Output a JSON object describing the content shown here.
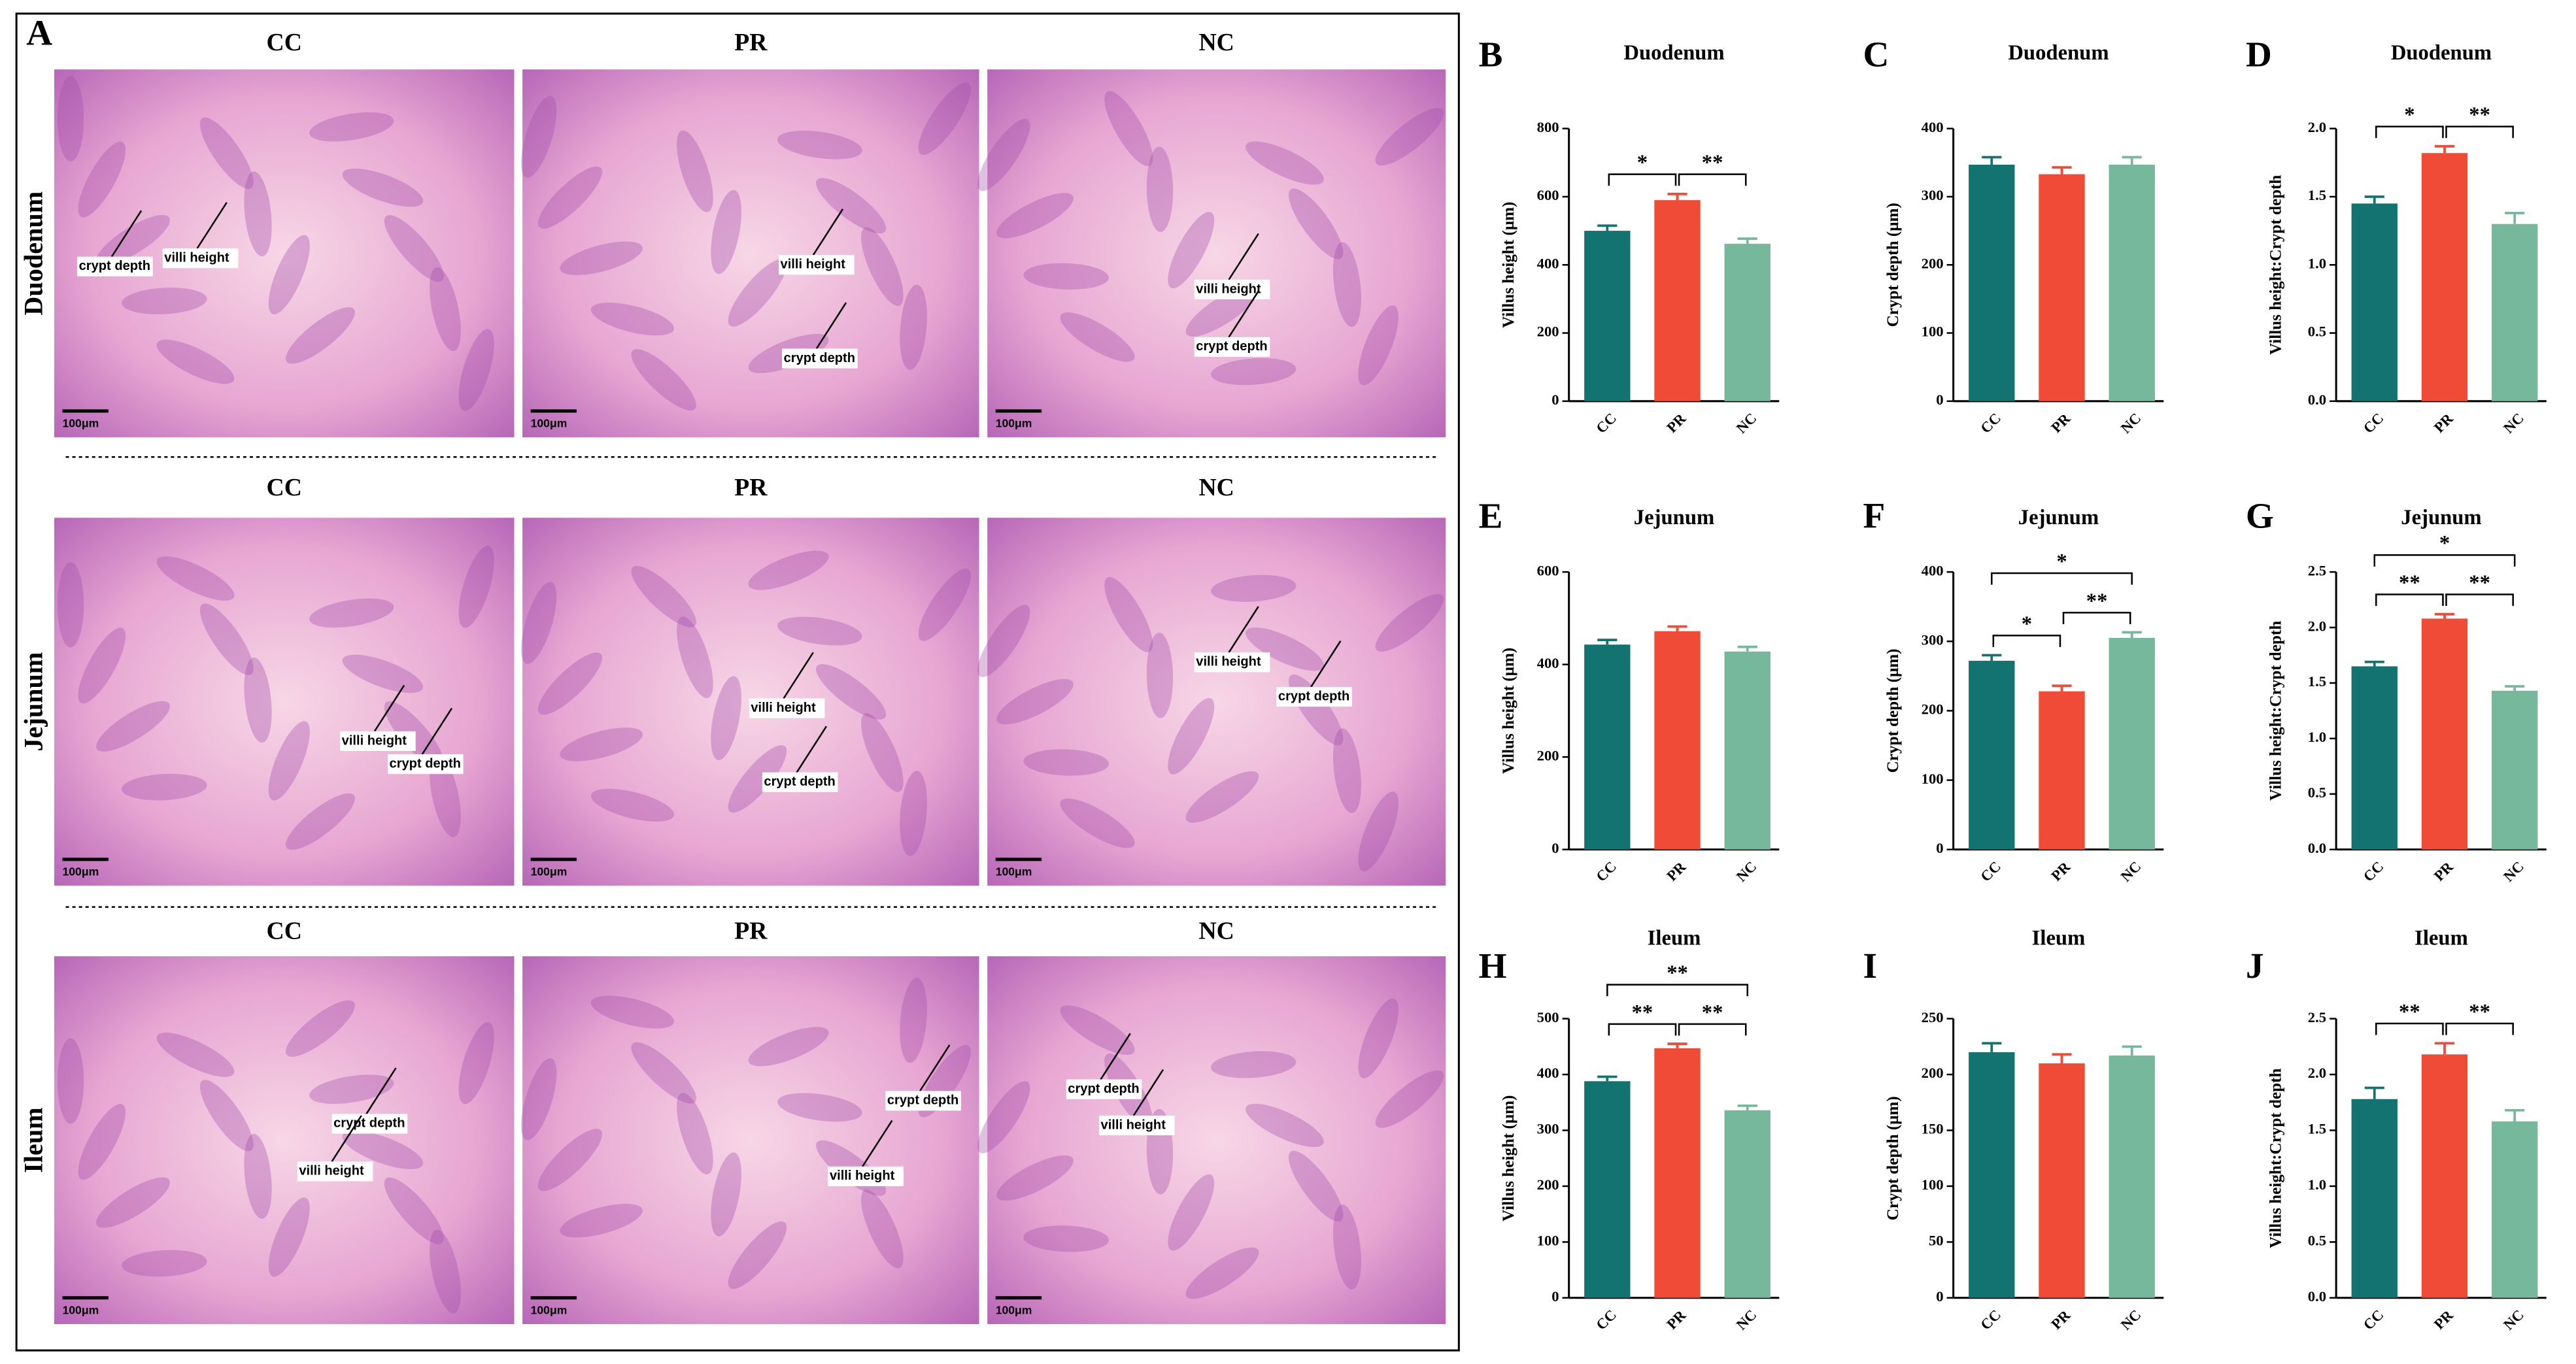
{
  "panel_a": {
    "label": "A",
    "rows": [
      {
        "name": "Duodenum",
        "groups": [
          "CC",
          "PR",
          "NC"
        ],
        "images": [
          {
            "annotations": [
              "crypt depth",
              "villi height"
            ],
            "scale_bar": "100μm"
          },
          {
            "annotations": [
              "villi height",
              "crypt depth"
            ],
            "scale_bar": "100μm"
          },
          {
            "annotations": [
              "villi height",
              "crypt depth"
            ],
            "scale_bar": "100μm"
          }
        ]
      },
      {
        "name": "Jejunum",
        "groups": [
          "CC",
          "PR",
          "NC"
        ],
        "images": [
          {
            "annotations": [
              "villi height",
              "crypt depth"
            ],
            "scale_bar": "100μm"
          },
          {
            "annotations": [
              "villi height",
              "crypt depth"
            ],
            "scale_bar": "100μm"
          },
          {
            "annotations": [
              "villi height",
              "crypt depth"
            ],
            "scale_bar": "100μm"
          }
        ]
      },
      {
        "name": "Ileum",
        "groups": [
          "CC",
          "PR",
          "NC"
        ],
        "images": [
          {
            "annotations": [
              "crypt depth",
              "villi height"
            ],
            "scale_bar": "100μm"
          },
          {
            "annotations": [
              "crypt depth",
              "villi height"
            ],
            "scale_bar": "100μm"
          },
          {
            "annotations": [
              "crypt depth",
              "villi height"
            ],
            "scale_bar": "100μm"
          }
        ]
      }
    ]
  },
  "chart_data": [
    {
      "type": "bar",
      "panel": "B",
      "title": "Duodenum",
      "ylabel": "Villus height (μm)",
      "categories": [
        "CC",
        "PR",
        "NC"
      ],
      "values": [
        500,
        590,
        462
      ],
      "errors": [
        15,
        18,
        15
      ],
      "colors": [
        "#137370",
        "#f04b36",
        "#76b89b"
      ],
      "ylim": [
        0,
        800
      ],
      "yticks": [
        0,
        200,
        400,
        600,
        800
      ],
      "significance": [
        {
          "from": "CC",
          "to": "PR",
          "label": "*"
        },
        {
          "from": "PR",
          "to": "NC",
          "label": "**"
        }
      ]
    },
    {
      "type": "bar",
      "panel": "C",
      "title": "Duodenum",
      "ylabel": "Crypt depth (μm)",
      "categories": [
        "CC",
        "PR",
        "NC"
      ],
      "values": [
        347,
        333,
        347
      ],
      "errors": [
        11,
        10,
        11
      ],
      "colors": [
        "#137370",
        "#f04b36",
        "#76b89b"
      ],
      "ylim": [
        0,
        400
      ],
      "yticks": [
        0,
        100,
        200,
        300,
        400
      ],
      "significance": []
    },
    {
      "type": "bar",
      "panel": "D",
      "title": "Duodenum",
      "ylabel": "Villus height:Crypt depth",
      "categories": [
        "CC",
        "PR",
        "NC"
      ],
      "values": [
        1.45,
        1.82,
        1.3
      ],
      "errors": [
        0.05,
        0.05,
        0.08
      ],
      "colors": [
        "#137370",
        "#f04b36",
        "#76b89b"
      ],
      "ylim": [
        0,
        2
      ],
      "yticks": [
        {
          "value": 0,
          "label": "0.0"
        },
        0.5,
        {
          "value": 1,
          "label": "1.0"
        },
        1.5,
        {
          "value": 2,
          "label": "2.0"
        }
      ],
      "significance": [
        {
          "from": "CC",
          "to": "PR",
          "label": "*"
        },
        {
          "from": "PR",
          "to": "NC",
          "label": "**"
        }
      ]
    },
    {
      "type": "bar",
      "panel": "E",
      "title": "Jejunum",
      "ylabel": "Villus height (μm)",
      "categories": [
        "CC",
        "PR",
        "NC"
      ],
      "values": [
        443,
        472,
        428
      ],
      "errors": [
        10,
        10,
        10
      ],
      "colors": [
        "#137370",
        "#f04b36",
        "#76b89b"
      ],
      "ylim": [
        0,
        600
      ],
      "yticks": [
        0,
        200,
        400,
        600
      ],
      "significance": []
    },
    {
      "type": "bar",
      "panel": "F",
      "title": "Jejunum",
      "ylabel": "Crypt depth (μm)",
      "categories": [
        "CC",
        "PR",
        "NC"
      ],
      "values": [
        272,
        228,
        305
      ],
      "errors": [
        8,
        8,
        8
      ],
      "colors": [
        "#137370",
        "#f04b36",
        "#76b89b"
      ],
      "ylim": [
        0,
        400
      ],
      "yticks": [
        0,
        100,
        200,
        300,
        400
      ],
      "significance": [
        {
          "from": "CC",
          "to": "PR",
          "label": "*"
        },
        {
          "from": "PR",
          "to": "NC",
          "label": "**"
        },
        {
          "from": "CC",
          "to": "NC",
          "label": "*"
        }
      ]
    },
    {
      "type": "bar",
      "panel": "G",
      "title": "Jejunum",
      "ylabel": "Villus height:Crypt depth",
      "categories": [
        "CC",
        "PR",
        "NC"
      ],
      "values": [
        1.65,
        2.08,
        1.43
      ],
      "errors": [
        0.04,
        0.04,
        0.04
      ],
      "colors": [
        "#137370",
        "#f04b36",
        "#76b89b"
      ],
      "ylim": [
        0,
        2.5
      ],
      "yticks": [
        {
          "value": 0,
          "label": "0.0"
        },
        0.5,
        {
          "value": 1,
          "label": "1.0"
        },
        1.5,
        {
          "value": 2,
          "label": "2.0"
        },
        2.5
      ],
      "significance": [
        {
          "from": "CC",
          "to": "PR",
          "label": "**"
        },
        {
          "from": "PR",
          "to": "NC",
          "label": "**"
        },
        {
          "from": "CC",
          "to": "NC",
          "label": "*"
        }
      ]
    },
    {
      "type": "bar",
      "panel": "H",
      "title": "Ileum",
      "ylabel": "Villus height (μm)",
      "categories": [
        "CC",
        "PR",
        "NC"
      ],
      "values": [
        388,
        447,
        336
      ],
      "errors": [
        8,
        8,
        8
      ],
      "colors": [
        "#137370",
        "#f04b36",
        "#76b89b"
      ],
      "ylim": [
        0,
        500
      ],
      "yticks": [
        0,
        100,
        200,
        300,
        400,
        500
      ],
      "significance": [
        {
          "from": "CC",
          "to": "PR",
          "label": "**"
        },
        {
          "from": "PR",
          "to": "NC",
          "label": "**"
        },
        {
          "from": "CC",
          "to": "NC",
          "label": "**"
        }
      ]
    },
    {
      "type": "bar",
      "panel": "I",
      "title": "Ileum",
      "ylabel": "Crypt depth (μm)",
      "categories": [
        "CC",
        "PR",
        "NC"
      ],
      "values": [
        220,
        210,
        217
      ],
      "errors": [
        8,
        8,
        8
      ],
      "colors": [
        "#137370",
        "#f04b36",
        "#76b89b"
      ],
      "ylim": [
        0,
        250
      ],
      "yticks": [
        0,
        50,
        100,
        150,
        200,
        250
      ],
      "significance": []
    },
    {
      "type": "bar",
      "panel": "J",
      "title": "Ileum",
      "ylabel": "Villus height:Crypt depth",
      "categories": [
        "CC",
        "PR",
        "NC"
      ],
      "values": [
        1.78,
        2.18,
        1.58
      ],
      "errors": [
        0.1,
        0.1,
        0.1
      ],
      "colors": [
        "#137370",
        "#f04b36",
        "#76b89b"
      ],
      "ylim": [
        0,
        2.5
      ],
      "yticks": [
        {
          "value": 0,
          "label": "0.0"
        },
        0.5,
        {
          "value": 1,
          "label": "1.0"
        },
        1.5,
        {
          "value": 2,
          "label": "2.0"
        },
        2.5
      ],
      "significance": [
        {
          "from": "CC",
          "to": "PR",
          "label": "**"
        },
        {
          "from": "PR",
          "to": "NC",
          "label": "**"
        }
      ]
    }
  ]
}
